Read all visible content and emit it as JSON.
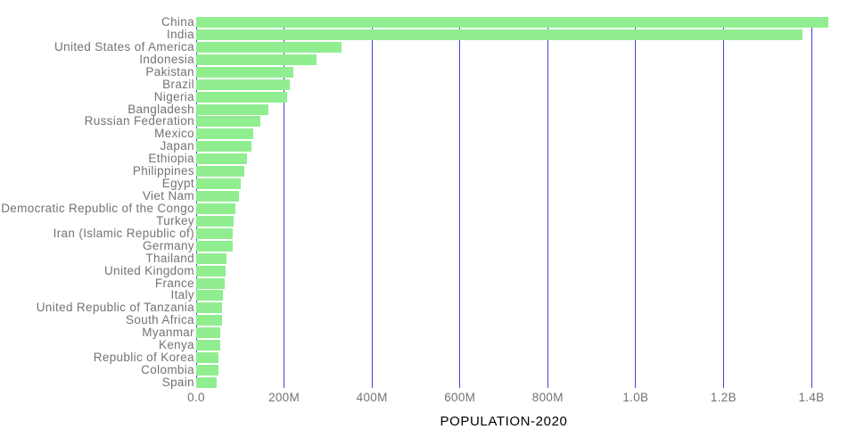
{
  "chart_data": {
    "type": "bar",
    "orientation": "horizontal",
    "title": "POPULATION-2020",
    "xlabel": "POPULATION-2020",
    "ylabel": "",
    "grid": true,
    "legend": false,
    "xlim_millions": [
      0,
      1400
    ],
    "x_tick_labels": [
      "0.0",
      "200M",
      "400M",
      "600M",
      "800M",
      "1.0B",
      "1.2B",
      "1.4B"
    ],
    "x_tick_values_millions": [
      0,
      200,
      400,
      600,
      800,
      1000,
      1200,
      1400
    ],
    "categories": [
      "China",
      "India",
      "United States of America",
      "Indonesia",
      "Pakistan",
      "Brazil",
      "Nigeria",
      "Bangladesh",
      "Russian Federation",
      "Mexico",
      "Japan",
      "Ethiopia",
      "Philippines",
      "Egypt",
      "Viet Nam",
      "Democratic Republic of the Congo",
      "Turkey",
      "Iran (Islamic Republic of)",
      "Germany",
      "Thailand",
      "United Kingdom",
      "France",
      "Italy",
      "United Republic of Tanzania",
      "South Africa",
      "Myanmar",
      "Kenya",
      "Republic of Korea",
      "Colombia",
      "Spain"
    ],
    "values_millions": [
      1439.3,
      1380.0,
      331.0,
      273.5,
      220.9,
      212.6,
      206.1,
      164.7,
      145.9,
      128.9,
      126.5,
      115.0,
      109.6,
      102.3,
      97.3,
      89.6,
      84.3,
      84.0,
      83.8,
      69.8,
      67.9,
      65.3,
      60.5,
      59.7,
      59.3,
      54.4,
      53.8,
      51.3,
      50.9,
      46.8
    ],
    "colors": {
      "bar": "#90EE90",
      "gridline": "#4444DD",
      "category_text": "#737373",
      "tick_text": "#737373",
      "title_text": "#2B2B2B",
      "background": "#FFFFFF"
    }
  }
}
